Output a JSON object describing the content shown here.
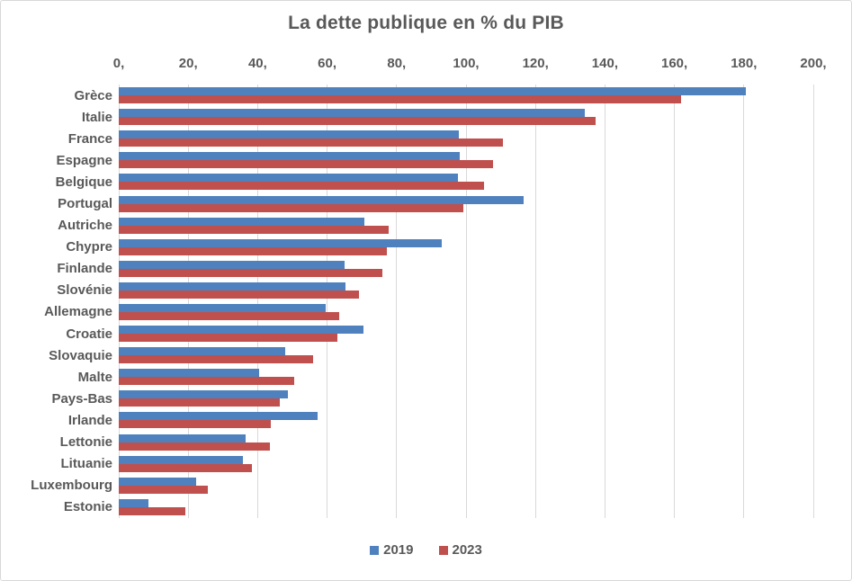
{
  "chart_data": {
    "type": "bar",
    "orientation": "horizontal",
    "title": "La dette publique en % du PIB",
    "categories": [
      "Grèce",
      "Italie",
      "France",
      "Espagne",
      "Belgique",
      "Portugal",
      "Autriche",
      "Chypre",
      "Finlande",
      "Slovénie",
      "Allemagne",
      "Croatie",
      "Slovaquie",
      "Malte",
      "Pays-Bas",
      "Irlande",
      "Lettonie",
      "Lituanie",
      "Luxembourg",
      "Estonie"
    ],
    "series": [
      {
        "name": "2019",
        "color": "#4E81BD",
        "values": [
          180.6,
          134.1,
          97.9,
          98.2,
          97.6,
          116.6,
          70.6,
          93.0,
          64.9,
          65.4,
          59.6,
          70.5,
          48.0,
          40.3,
          48.6,
          57.2,
          36.5,
          35.8,
          22.4,
          8.5
        ]
      },
      {
        "name": "2023",
        "color": "#C0504D",
        "values": [
          161.9,
          137.3,
          110.6,
          107.7,
          105.2,
          99.1,
          77.8,
          77.3,
          75.8,
          69.2,
          63.6,
          63.0,
          56.0,
          50.4,
          46.5,
          43.7,
          43.6,
          38.3,
          25.7,
          19.2
        ]
      }
    ],
    "xlim": [
      0,
      200
    ],
    "x_tick_step": 20,
    "x_tick_labels": [
      "0,",
      "20,",
      "40,",
      "60,",
      "80,",
      "100,",
      "120,",
      "140,",
      "160,",
      "180,",
      "200,"
    ],
    "grid": true,
    "gridline_color": "#D9D9D9",
    "text_color": "#595959",
    "legend_position": "bottom",
    "xlabel": "",
    "ylabel": ""
  }
}
